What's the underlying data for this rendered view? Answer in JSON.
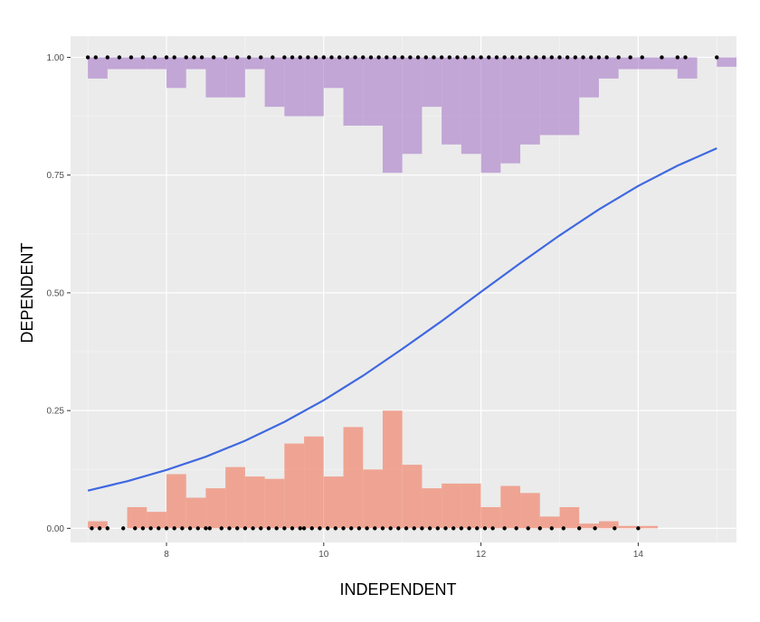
{
  "chart_data": {
    "type": "histogram-logistic",
    "xlabel": "INDEPENDENT",
    "ylabel": "DEPENDENT",
    "xlim": [
      6.78,
      15.25
    ],
    "ylim": [
      -0.03,
      1.045
    ],
    "x_ticks": [
      8,
      10,
      12,
      14
    ],
    "x_tick_labels": [
      "8",
      "10",
      "12",
      "14"
    ],
    "y_ticks": [
      0,
      0.25,
      0.5,
      0.75,
      1
    ],
    "y_tick_labels": [
      "0.00",
      "0.25",
      "0.50",
      "0.75",
      "1.00"
    ],
    "grid": true,
    "legend": "none",
    "colors": {
      "panel": "#ebebeb",
      "top_hist": "#b48fcf",
      "bottom_hist": "#f08c76",
      "curve": "#3f68e0",
      "points": "#000000"
    },
    "histograms": {
      "bin_width": 0.25,
      "top": {
        "baseline": 1,
        "bins": [
          {
            "x": 7.125,
            "y": 0.955
          },
          {
            "x": 7.375,
            "y": 0.975
          },
          {
            "x": 7.625,
            "y": 0.975
          },
          {
            "x": 7.875,
            "y": 0.975
          },
          {
            "x": 8.125,
            "y": 0.935
          },
          {
            "x": 8.375,
            "y": 0.975
          },
          {
            "x": 8.625,
            "y": 0.915
          },
          {
            "x": 8.875,
            "y": 0.915
          },
          {
            "x": 9.125,
            "y": 0.975
          },
          {
            "x": 9.375,
            "y": 0.895
          },
          {
            "x": 9.625,
            "y": 0.875
          },
          {
            "x": 9.875,
            "y": 0.875
          },
          {
            "x": 10.125,
            "y": 0.935
          },
          {
            "x": 10.375,
            "y": 0.855
          },
          {
            "x": 10.625,
            "y": 0.855
          },
          {
            "x": 10.875,
            "y": 0.755
          },
          {
            "x": 11.125,
            "y": 0.795
          },
          {
            "x": 11.375,
            "y": 0.895
          },
          {
            "x": 11.625,
            "y": 0.815
          },
          {
            "x": 11.875,
            "y": 0.795
          },
          {
            "x": 12.125,
            "y": 0.755
          },
          {
            "x": 12.375,
            "y": 0.775
          },
          {
            "x": 12.625,
            "y": 0.815
          },
          {
            "x": 12.875,
            "y": 0.835
          },
          {
            "x": 13.125,
            "y": 0.835
          },
          {
            "x": 13.375,
            "y": 0.915
          },
          {
            "x": 13.625,
            "y": 0.955
          },
          {
            "x": 13.875,
            "y": 0.975
          },
          {
            "x": 14.125,
            "y": 0.975
          },
          {
            "x": 14.375,
            "y": 0.975
          },
          {
            "x": 14.625,
            "y": 0.955
          },
          {
            "x": 14.875,
            "y": 1.0
          },
          {
            "x": 15.125,
            "y": 0.98
          }
        ]
      },
      "bottom": {
        "baseline": 0,
        "bins": [
          {
            "x": 7.125,
            "y": 0.015
          },
          {
            "x": 7.375,
            "y": 0.0
          },
          {
            "x": 7.625,
            "y": 0.045
          },
          {
            "x": 7.875,
            "y": 0.035
          },
          {
            "x": 8.125,
            "y": 0.115
          },
          {
            "x": 8.375,
            "y": 0.065
          },
          {
            "x": 8.625,
            "y": 0.085
          },
          {
            "x": 8.875,
            "y": 0.13
          },
          {
            "x": 9.125,
            "y": 0.11
          },
          {
            "x": 9.375,
            "y": 0.105
          },
          {
            "x": 9.625,
            "y": 0.18
          },
          {
            "x": 9.875,
            "y": 0.195
          },
          {
            "x": 10.125,
            "y": 0.11
          },
          {
            "x": 10.375,
            "y": 0.215
          },
          {
            "x": 10.625,
            "y": 0.125
          },
          {
            "x": 10.875,
            "y": 0.25
          },
          {
            "x": 11.125,
            "y": 0.135
          },
          {
            "x": 11.375,
            "y": 0.085
          },
          {
            "x": 11.625,
            "y": 0.095
          },
          {
            "x": 11.875,
            "y": 0.095
          },
          {
            "x": 12.125,
            "y": 0.045
          },
          {
            "x": 12.375,
            "y": 0.09
          },
          {
            "x": 12.625,
            "y": 0.075
          },
          {
            "x": 12.875,
            "y": 0.025
          },
          {
            "x": 13.125,
            "y": 0.045
          },
          {
            "x": 13.375,
            "y": 0.01
          },
          {
            "x": 13.625,
            "y": 0.015
          },
          {
            "x": 13.875,
            "y": 0.005
          },
          {
            "x": 14.125,
            "y": 0.005
          }
        ]
      }
    },
    "fitted_curve": {
      "x": [
        7.0,
        7.5,
        8.0,
        8.5,
        9.0,
        9.5,
        10.0,
        10.5,
        11.0,
        11.5,
        12.0,
        12.5,
        13.0,
        13.5,
        14.0,
        14.5,
        15.0
      ],
      "y": [
        0.08,
        0.1,
        0.124,
        0.152,
        0.186,
        0.226,
        0.272,
        0.324,
        0.381,
        0.44,
        0.502,
        0.563,
        0.622,
        0.677,
        0.727,
        0.77,
        0.807
      ]
    },
    "rug_points": {
      "y0_x": [
        7.05,
        7.15,
        7.25,
        7.45,
        7.6,
        7.7,
        7.8,
        7.9,
        8.0,
        8.1,
        8.2,
        8.3,
        8.4,
        8.5,
        8.55,
        8.7,
        8.8,
        8.9,
        9.0,
        9.1,
        9.2,
        9.3,
        9.4,
        9.5,
        9.6,
        9.7,
        9.75,
        9.85,
        9.95,
        10.05,
        10.15,
        10.25,
        10.35,
        10.45,
        10.55,
        10.65,
        10.75,
        10.85,
        10.95,
        11.05,
        11.15,
        11.25,
        11.35,
        11.45,
        11.55,
        11.65,
        11.75,
        11.85,
        11.95,
        12.05,
        12.15,
        12.3,
        12.45,
        12.6,
        12.75,
        12.9,
        13.05,
        13.25,
        13.45,
        13.7,
        14.0
      ],
      "y1_x": [
        7.0,
        7.1,
        7.25,
        7.4,
        7.55,
        7.7,
        7.85,
        8.0,
        8.1,
        8.25,
        8.35,
        8.45,
        8.6,
        8.75,
        8.9,
        9.05,
        9.2,
        9.35,
        9.5,
        9.6,
        9.7,
        9.8,
        9.9,
        10.0,
        10.1,
        10.2,
        10.3,
        10.4,
        10.5,
        10.6,
        10.7,
        10.8,
        10.9,
        11.0,
        11.1,
        11.2,
        11.3,
        11.4,
        11.5,
        11.6,
        11.7,
        11.8,
        11.9,
        12.0,
        12.1,
        12.2,
        12.3,
        12.4,
        12.5,
        12.6,
        12.7,
        12.8,
        12.9,
        13.0,
        13.1,
        13.2,
        13.3,
        13.4,
        13.5,
        13.6,
        13.75,
        13.9,
        14.05,
        14.3,
        14.5,
        14.6,
        15.0
      ]
    }
  }
}
